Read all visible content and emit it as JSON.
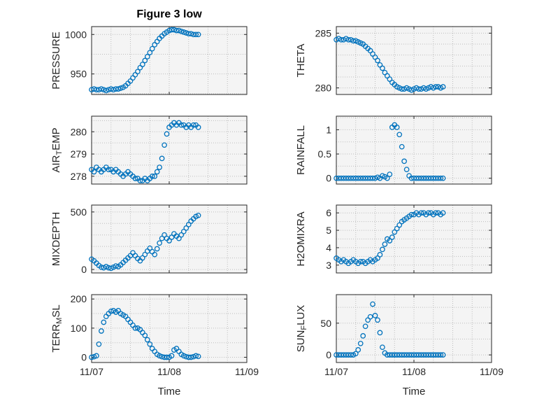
{
  "figure": {
    "title": "Figure 3 low"
  },
  "chart_data": {
    "type": "scatter",
    "title": "Figure 3 low",
    "legend": "none",
    "grid": "on, dotted",
    "marker": "open-circle",
    "colors": {
      "marker": "#0072BD",
      "axis": "#262626",
      "grid": "#bdbdbd",
      "plot_bg": "#f4f4f4",
      "figure_bg": "#ffffff"
    },
    "x_axis": {
      "label": "Time",
      "lim": [
        0,
        48
      ],
      "ticks": [
        {
          "pos": 0,
          "label": "11/07"
        },
        {
          "pos": 24,
          "label": "11/08"
        },
        {
          "pos": 48,
          "label": "11/09"
        }
      ],
      "grid": [
        0,
        6,
        12,
        18,
        24,
        30,
        36,
        42,
        48
      ]
    },
    "x_hours": [
      0,
      0.75,
      1.5,
      2.25,
      3,
      3.75,
      4.5,
      5.25,
      6,
      6.75,
      7.5,
      8.25,
      9,
      9.75,
      10.5,
      11.25,
      12,
      12.75,
      13.5,
      14.25,
      15,
      15.75,
      16.5,
      17.25,
      18,
      18.75,
      19.5,
      20.25,
      21,
      21.75,
      22.5,
      23.25,
      24,
      24.75,
      25.5,
      26.25,
      27,
      27.75,
      28.5,
      29.25,
      30,
      30.75,
      31.5,
      32.25,
      33
    ],
    "subplots": [
      {
        "name": "PRESSURE",
        "ylabel_pre": "PRESSURE",
        "ylabel_sub": "",
        "ylabel_post": "",
        "ylim": [
          924,
          1010
        ],
        "yticks": [
          950,
          1000
        ],
        "ytick_labels": [
          "950",
          "1000"
        ],
        "ygrid": [
          925,
          950,
          975,
          1000
        ],
        "values": [
          930,
          931,
          930,
          930,
          931,
          930,
          929,
          930,
          931,
          930,
          931,
          931,
          932,
          933,
          935,
          938,
          941,
          945,
          949,
          953,
          958,
          962,
          967,
          972,
          977,
          982,
          987,
          991,
          995,
          998,
          1001,
          1003,
          1005,
          1006,
          1006,
          1005,
          1005,
          1004,
          1003,
          1002,
          1001,
          1001,
          1000,
          1000,
          1000
        ]
      },
      {
        "name": "THETA",
        "ylabel_pre": "THETA",
        "ylabel_sub": "",
        "ylabel_post": "",
        "ylim": [
          279.4,
          285.6
        ],
        "yticks": [
          280,
          285
        ],
        "ytick_labels": [
          "280",
          "285"
        ],
        "ygrid": [
          280,
          281,
          282,
          283,
          284,
          285
        ],
        "values": [
          284.4,
          284.5,
          284.4,
          284.4,
          284.5,
          284.4,
          284.4,
          284.3,
          284.3,
          284.2,
          284.1,
          284.0,
          283.8,
          283.6,
          283.4,
          283.1,
          282.8,
          282.5,
          282.1,
          281.8,
          281.4,
          281.1,
          280.8,
          280.5,
          280.3,
          280.1,
          280.0,
          279.9,
          279.9,
          280.0,
          279.9,
          279.8,
          279.9,
          280.0,
          279.9,
          279.9,
          280.0,
          279.9,
          280.0,
          280.1,
          280.0,
          280.1,
          280.1,
          280.0,
          280.1
        ]
      },
      {
        "name": "AIR_TEMP",
        "ylabel_pre": "AIR",
        "ylabel_sub": "T",
        "ylabel_post": "EMP",
        "ylim": [
          277.65,
          280.7
        ],
        "yticks": [
          278,
          279,
          280
        ],
        "ytick_labels": [
          "278",
          "279",
          "280"
        ],
        "ygrid": [
          278,
          278.5,
          279,
          279.5,
          280,
          280.5
        ],
        "values": [
          278.3,
          278.2,
          278.4,
          278.3,
          278.2,
          278.3,
          278.4,
          278.3,
          278.3,
          278.2,
          278.3,
          278.2,
          278.1,
          278.0,
          278.1,
          278.2,
          278.1,
          278.0,
          277.9,
          277.9,
          277.8,
          277.8,
          277.9,
          277.8,
          277.9,
          278.0,
          278.0,
          278.2,
          278.4,
          278.8,
          279.4,
          279.9,
          280.2,
          280.3,
          280.4,
          280.3,
          280.4,
          280.3,
          280.3,
          280.2,
          280.3,
          280.2,
          280.3,
          280.3,
          280.2
        ]
      },
      {
        "name": "RAINFALL",
        "ylabel_pre": "RAINFALL",
        "ylabel_sub": "",
        "ylabel_post": "",
        "ylim": [
          -0.12,
          1.28
        ],
        "yticks": [
          0,
          0.5,
          1
        ],
        "ytick_labels": [
          "0",
          "0.5",
          "1"
        ],
        "ygrid": [
          0,
          0.25,
          0.5,
          0.75,
          1,
          1.25
        ],
        "values": [
          0,
          0,
          0,
          0,
          0,
          0,
          0,
          0,
          0,
          0,
          0,
          0,
          0,
          0,
          0,
          0,
          0,
          0.02,
          0,
          0.05,
          0.03,
          0,
          0.08,
          1.05,
          1.1,
          1.05,
          0.9,
          0.65,
          0.35,
          0.18,
          0.05,
          0,
          0,
          0,
          0,
          0,
          0,
          0,
          0,
          0,
          0,
          0,
          0,
          0,
          0
        ]
      },
      {
        "name": "MIXDEPTH",
        "ylabel_pre": "MIXDEPTH",
        "ylabel_sub": "",
        "ylabel_post": "",
        "ylim": [
          -30,
          560
        ],
        "yticks": [
          0,
          500
        ],
        "ytick_labels": [
          "0",
          "500"
        ],
        "ygrid": [
          0,
          100,
          200,
          300,
          400,
          500
        ],
        "values": [
          90,
          75,
          55,
          35,
          20,
          15,
          25,
          15,
          10,
          20,
          30,
          25,
          40,
          60,
          80,
          100,
          120,
          145,
          120,
          95,
          75,
          100,
          130,
          160,
          185,
          155,
          130,
          180,
          230,
          270,
          300,
          270,
          250,
          280,
          310,
          290,
          270,
          300,
          330,
          360,
          390,
          420,
          440,
          460,
          470
        ]
      },
      {
        "name": "H2OMIXRA",
        "ylabel_pre": "H2OMIXRA",
        "ylabel_sub": "",
        "ylabel_post": "",
        "ylim": [
          2.55,
          6.45
        ],
        "yticks": [
          3,
          4,
          5,
          6
        ],
        "ytick_labels": [
          "3",
          "4",
          "5",
          "6"
        ],
        "ygrid": [
          3,
          3.5,
          4,
          4.5,
          5,
          5.5,
          6
        ],
        "values": [
          3.4,
          3.3,
          3.2,
          3.3,
          3.2,
          3.1,
          3.2,
          3.3,
          3.2,
          3.1,
          3.2,
          3.2,
          3.1,
          3.2,
          3.3,
          3.2,
          3.3,
          3.4,
          3.6,
          3.9,
          4.2,
          4.5,
          4.4,
          4.6,
          4.9,
          5.1,
          5.3,
          5.5,
          5.6,
          5.7,
          5.8,
          5.9,
          5.9,
          6.0,
          5.9,
          6.0,
          6.0,
          5.9,
          6.0,
          6.0,
          5.9,
          6.0,
          6.0,
          5.9,
          6.0
        ]
      },
      {
        "name": "TERR_MSL",
        "ylabel_pre": "TERR",
        "ylabel_sub": "M",
        "ylabel_post": "SL",
        "ylim": [
          -18,
          215
        ],
        "yticks": [
          0,
          100,
          200
        ],
        "ytick_labels": [
          "0",
          "100",
          "200"
        ],
        "ygrid": [
          0,
          50,
          100,
          150,
          200
        ],
        "values": [
          0,
          2,
          5,
          45,
          90,
          120,
          140,
          150,
          158,
          160,
          155,
          160,
          150,
          145,
          140,
          130,
          120,
          110,
          100,
          100,
          95,
          85,
          75,
          60,
          45,
          30,
          20,
          10,
          5,
          2,
          0,
          0,
          0,
          5,
          25,
          30,
          20,
          10,
          5,
          2,
          0,
          0,
          2,
          5,
          3
        ]
      },
      {
        "name": "SUN_FLUX",
        "ylabel_pre": "SUN",
        "ylabel_sub": "F",
        "ylabel_post": "LUX",
        "ylim": [
          -12,
          95
        ],
        "yticks": [
          0,
          50
        ],
        "ytick_labels": [
          "0",
          "50"
        ],
        "ygrid": [
          0,
          25,
          50,
          75
        ],
        "values": [
          0,
          0,
          0,
          0,
          0,
          0,
          0,
          0,
          2,
          8,
          18,
          30,
          45,
          55,
          60,
          80,
          62,
          55,
          35,
          12,
          3,
          0,
          0,
          0,
          0,
          0,
          0,
          0,
          0,
          0,
          0,
          0,
          0,
          0,
          0,
          0,
          0,
          0,
          0,
          0,
          0,
          0,
          0,
          0,
          0
        ]
      }
    ]
  }
}
